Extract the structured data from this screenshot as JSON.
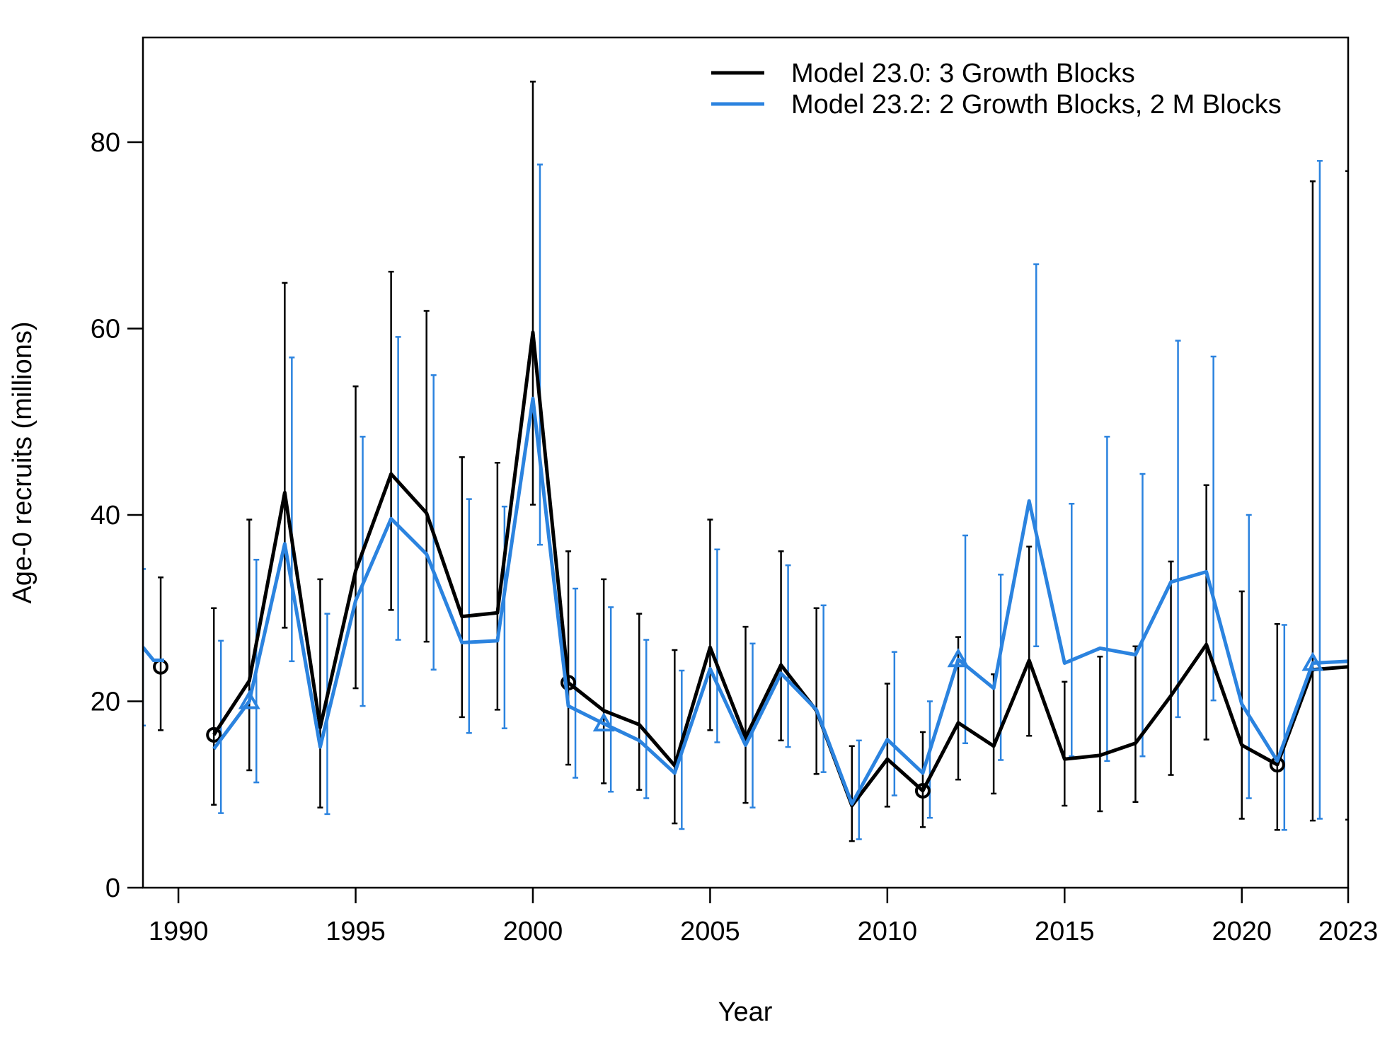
{
  "chart_data": {
    "type": "line",
    "xlabel": "Year",
    "ylabel": "Age-0 recruits (millions)",
    "xlim": [
      1989,
      2023
    ],
    "ylim": [
      0,
      90
    ],
    "x_ticks": [
      1990,
      1995,
      2000,
      2005,
      2010,
      2015,
      2020,
      2023
    ],
    "y_ticks": [
      0,
      20,
      40,
      60,
      80
    ],
    "grid": false,
    "legend_position": "top-right",
    "series": [
      {
        "name": "Model 23.0: 3 Growth Blocks",
        "color": "#000000",
        "marker": "circle",
        "virgin": {
          "x": 1989.5,
          "y": 23.7,
          "lo": 16.9,
          "hi": 33.3
        },
        "years": [
          1991,
          1992,
          1993,
          1994,
          1995,
          1996,
          1997,
          1998,
          1999,
          2000,
          2001,
          2002,
          2003,
          2004,
          2005,
          2006,
          2007,
          2008,
          2009,
          2010,
          2011,
          2012,
          2013,
          2014,
          2015,
          2016,
          2017,
          2018,
          2019,
          2020,
          2021,
          2022,
          2023
        ],
        "values": [
          16.4,
          22.2,
          42.4,
          17.2,
          34.0,
          44.4,
          40.2,
          29.1,
          29.5,
          59.6,
          22.0,
          19.0,
          17.5,
          13.1,
          25.8,
          16.1,
          23.9,
          19.0,
          8.8,
          13.8,
          10.4,
          17.7,
          15.2,
          24.4,
          13.8,
          14.2,
          15.5,
          20.6,
          26.1,
          15.3,
          13.2,
          23.4,
          23.7
        ],
        "lower": [
          8.9,
          12.6,
          27.9,
          8.6,
          21.4,
          29.8,
          26.4,
          18.3,
          19.1,
          41.1,
          13.2,
          11.2,
          10.5,
          6.9,
          16.9,
          9.1,
          15.8,
          12.2,
          5.0,
          8.7,
          6.5,
          11.6,
          10.1,
          16.3,
          8.8,
          8.2,
          9.2,
          12.1,
          15.9,
          7.4,
          6.2,
          7.2,
          7.3
        ],
        "upper": [
          30.0,
          39.5,
          64.9,
          33.1,
          53.8,
          66.1,
          61.9,
          46.2,
          45.6,
          86.5,
          36.1,
          33.1,
          29.4,
          25.5,
          39.5,
          28.0,
          36.1,
          30.0,
          15.2,
          21.9,
          16.7,
          26.9,
          22.9,
          36.6,
          22.1,
          24.8,
          25.9,
          35.0,
          43.2,
          31.8,
          28.3,
          75.8,
          76.9
        ]
      },
      {
        "name": "Model 23.2: 2 Growth Blocks, 2 M Blocks",
        "color": "#2B83DF",
        "marker": "triangle",
        "virgin": {
          "x": 1989,
          "y": 24.4,
          "lo": 17.4,
          "hi": 34.2
        },
        "years": [
          1991,
          1992,
          1993,
          1994,
          1995,
          1996,
          1997,
          1998,
          1999,
          2000,
          2001,
          2002,
          2003,
          2004,
          2005,
          2006,
          2007,
          2008,
          2009,
          2010,
          2011,
          2012,
          2013,
          2014,
          2015,
          2016,
          2017,
          2018,
          2019,
          2020,
          2021,
          2022,
          2023
        ],
        "values": [
          14.9,
          20.0,
          36.9,
          15.1,
          30.8,
          39.6,
          35.8,
          26.3,
          26.5,
          52.5,
          19.5,
          17.6,
          15.8,
          12.3,
          23.5,
          15.3,
          23.0,
          19.1,
          9.0,
          15.9,
          12.3,
          24.5,
          21.4,
          41.5,
          24.1,
          25.7,
          25.0,
          32.8,
          33.9,
          19.7,
          13.6,
          24.1,
          24.3
        ],
        "lower": [
          8.0,
          11.3,
          24.3,
          7.9,
          19.5,
          26.6,
          23.4,
          16.6,
          17.1,
          36.8,
          11.8,
          10.3,
          9.6,
          6.3,
          15.6,
          8.6,
          15.1,
          12.4,
          5.2,
          9.9,
          7.5,
          15.5,
          13.7,
          25.9,
          14.1,
          13.6,
          14.1,
          18.3,
          20.1,
          9.6,
          6.2,
          7.4,
          7.5
        ],
        "upper": [
          26.5,
          35.2,
          56.9,
          29.4,
          48.4,
          59.1,
          55.0,
          41.7,
          40.9,
          77.6,
          32.1,
          30.1,
          26.6,
          23.3,
          36.3,
          26.2,
          34.6,
          30.3,
          15.8,
          25.3,
          20.0,
          37.8,
          33.6,
          66.9,
          41.2,
          48.4,
          44.4,
          58.7,
          57.0,
          40.0,
          28.2,
          78.0,
          78.0
        ]
      }
    ]
  }
}
